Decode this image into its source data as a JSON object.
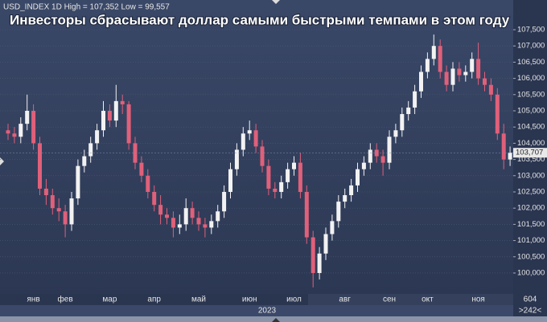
{
  "chart_data": {
    "type": "candlestick",
    "title": "Инвесторы сбрасывают доллар самыми быстрыми темпами в этом году",
    "header": "USD_INDEX 1D High = 107,352 Low = 99,557",
    "year": "2023",
    "last_label": "103,707",
    "corner_labels": [
      "604",
      ">242<"
    ],
    "up_color": "#f2f2f2",
    "down_color": "#e0607a",
    "grid": true,
    "ylim": [
      99.356,
      108.416
    ],
    "yticks": [
      {
        "value": 100,
        "label": "100,000"
      },
      {
        "value": 100.5,
        "label": "100,500"
      },
      {
        "value": 101,
        "label": "101,000"
      },
      {
        "value": 101.5,
        "label": "101,500"
      },
      {
        "value": 102,
        "label": "102,000"
      },
      {
        "value": 102.5,
        "label": "102,500"
      },
      {
        "value": 103,
        "label": "103,000"
      },
      {
        "value": 103.5,
        "label": "103,500"
      },
      {
        "value": 104,
        "label": "104,000"
      },
      {
        "value": 104.5,
        "label": "104,500"
      },
      {
        "value": 105,
        "label": "105,000"
      },
      {
        "value": 105.5,
        "label": "105,500"
      },
      {
        "value": 106,
        "label": "106,000"
      },
      {
        "value": 106.5,
        "label": "106,500"
      },
      {
        "value": 107,
        "label": "107,000"
      },
      {
        "value": 107.5,
        "label": "107,500"
      }
    ],
    "categories": [
      null,
      null,
      null,
      null,
      "янв",
      null,
      null,
      null,
      null,
      "фев",
      null,
      null,
      null,
      null,
      null,
      null,
      "мар",
      null,
      null,
      null,
      null,
      null,
      null,
      "апр",
      null,
      null,
      null,
      null,
      null,
      null,
      "май",
      null,
      null,
      null,
      null,
      null,
      null,
      null,
      "июн",
      null,
      null,
      null,
      null,
      null,
      null,
      "июл",
      null,
      null,
      null,
      null,
      null,
      null,
      null,
      "авг",
      null,
      null,
      null,
      null,
      null,
      null,
      "сен",
      null,
      null,
      null,
      null,
      null,
      "окт",
      null,
      null,
      null,
      null,
      null,
      null,
      null,
      "ноя",
      null,
      null,
      null,
      null,
      null
    ],
    "open": [
      104.4,
      104.3,
      104.2,
      104.6,
      105.0,
      104.0,
      102.6,
      102.4,
      102.0,
      101.9,
      101.5,
      102.3,
      103.3,
      103.6,
      104.0,
      104.4,
      105.0,
      104.7,
      105.3,
      105.2,
      104.0,
      103.4,
      103.0,
      102.5,
      102.1,
      101.8,
      101.7,
      101.4,
      101.5,
      102.0,
      101.7,
      101.5,
      101.4,
      101.6,
      101.9,
      102.5,
      103.2,
      103.8,
      104.3,
      104.4,
      103.9,
      103.3,
      102.6,
      102.5,
      102.8,
      103.2,
      103.4,
      102.5,
      101.1,
      100.0,
      100.6,
      101.2,
      101.6,
      102.2,
      102.4,
      102.7,
      103.2,
      103.4,
      103.8,
      103.6,
      103.4,
      104.2,
      104.4,
      104.9,
      105.1,
      105.6,
      106.2,
      106.6,
      107.0,
      106.2,
      105.8,
      106.3,
      106.1,
      106.2,
      106.6,
      106.0,
      105.8,
      105.5,
      104.3,
      103.5
    ],
    "high": [
      104.6,
      104.5,
      104.8,
      105.5,
      105.2,
      104.2,
      102.9,
      102.6,
      102.3,
      102.1,
      102.5,
      103.5,
      103.8,
      104.2,
      104.6,
      105.3,
      105.2,
      105.8,
      105.5,
      105.3,
      104.2,
      103.6,
      103.2,
      102.7,
      102.4,
      102.0,
      101.9,
      101.8,
      102.3,
      102.2,
      101.9,
      101.7,
      101.8,
      102.1,
      102.7,
      103.4,
      104.0,
      104.5,
      104.7,
      104.6,
      104.1,
      103.5,
      102.8,
      103.0,
      103.4,
      103.6,
      103.7,
      102.7,
      101.3,
      100.8,
      101.4,
      101.8,
      102.4,
      102.6,
      102.9,
      103.4,
      103.6,
      104.0,
      104.0,
      103.8,
      104.4,
      104.6,
      105.1,
      105.3,
      105.8,
      106.4,
      106.8,
      107.352,
      107.2,
      106.4,
      106.5,
      106.5,
      106.4,
      106.8,
      107.1,
      106.2,
      106.0,
      105.7,
      104.6,
      103.9
    ],
    "low": [
      104.1,
      104.0,
      104.0,
      104.4,
      103.8,
      102.4,
      102.1,
      101.8,
      101.6,
      101.1,
      101.3,
      102.1,
      103.1,
      103.4,
      103.8,
      104.2,
      104.5,
      104.5,
      104.9,
      103.8,
      103.2,
      102.8,
      102.3,
      101.9,
      101.5,
      101.5,
      101.1,
      101.2,
      101.3,
      101.5,
      101.3,
      101.1,
      101.2,
      101.4,
      101.7,
      102.3,
      103.0,
      103.6,
      104.1,
      103.7,
      103.1,
      102.4,
      102.3,
      102.3,
      102.6,
      103.0,
      102.3,
      100.9,
      99.557,
      99.8,
      100.4,
      101.0,
      101.4,
      102.0,
      102.2,
      102.5,
      103.0,
      103.2,
      103.4,
      103.0,
      103.2,
      104.0,
      104.2,
      104.7,
      104.9,
      105.4,
      106.0,
      106.4,
      106.0,
      105.6,
      105.6,
      105.9,
      105.9,
      106.0,
      105.8,
      105.6,
      105.3,
      104.1,
      103.2,
      103.3
    ],
    "close": [
      104.3,
      104.2,
      104.6,
      105.0,
      104.0,
      102.6,
      102.4,
      102.0,
      101.9,
      101.5,
      102.3,
      103.3,
      103.6,
      104.0,
      104.4,
      105.0,
      104.7,
      105.3,
      105.2,
      104.0,
      103.4,
      103.0,
      102.5,
      102.1,
      101.8,
      101.7,
      101.4,
      101.5,
      102.0,
      101.7,
      101.5,
      101.4,
      101.6,
      101.9,
      102.5,
      103.2,
      103.8,
      104.3,
      104.4,
      103.9,
      103.3,
      102.6,
      102.5,
      102.8,
      103.2,
      103.4,
      102.5,
      101.1,
      100.0,
      100.6,
      101.2,
      101.6,
      102.2,
      102.4,
      102.7,
      103.2,
      103.4,
      103.8,
      103.6,
      103.4,
      104.2,
      104.4,
      104.9,
      105.1,
      105.6,
      106.2,
      106.6,
      107.0,
      106.2,
      105.8,
      106.3,
      106.1,
      106.2,
      106.6,
      106.0,
      105.8,
      105.5,
      104.3,
      103.5,
      103.707
    ]
  }
}
